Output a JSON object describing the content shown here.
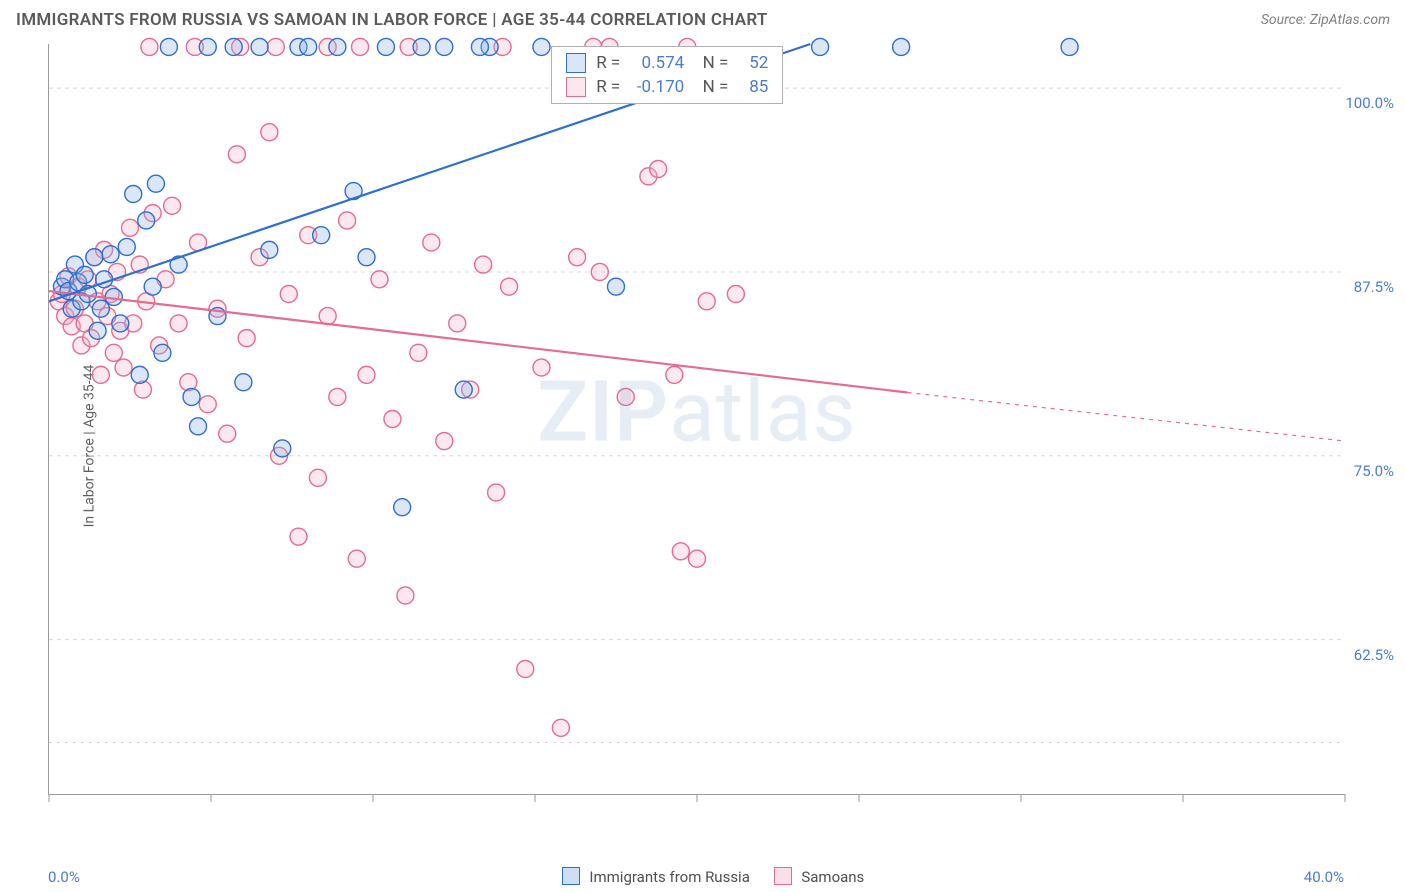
{
  "title": "IMMIGRANTS FROM RUSSIA VS SAMOAN IN LABOR FORCE | AGE 35-44 CORRELATION CHART",
  "source": "Source: ZipAtlas.com",
  "ylabel": "In Labor Force | Age 35-44",
  "watermark_a": "ZIP",
  "watermark_b": "atlas",
  "chart": {
    "type": "scatter",
    "xlim": [
      0,
      40
    ],
    "ylim": [
      52,
      103
    ],
    "x_ticks": [
      0,
      5,
      10,
      15,
      20,
      25,
      30,
      35,
      40
    ],
    "x_tick_labels_shown": {
      "0": "0.0%",
      "40": "40.0%"
    },
    "y_gridlines": [
      62.5,
      75.0,
      87.5,
      100.0
    ],
    "y_tick_labels": [
      "62.5%",
      "75.0%",
      "87.5%",
      "100.0%"
    ],
    "y_secondary_dash": 55.5,
    "background_color": "#ffffff",
    "grid_color": "#d8d8d8",
    "axis_color": "#9a9a9a",
    "tick_length": 8,
    "marker_radius": 8.5,
    "marker_stroke_width": 1.4,
    "marker_fill_opacity": 0.32,
    "line_width": 2.2,
    "series": {
      "russia": {
        "label": "Immigrants from Russia",
        "stroke": "#2f6fd0",
        "fill": "#8fb3e8",
        "corr_R": "0.574",
        "corr_N": "52",
        "trend": {
          "x1": 0,
          "y1": 85.5,
          "x2": 23.5,
          "y2": 103.0,
          "extend_dash_to_x": null
        },
        "points": [
          [
            0.4,
            86.5
          ],
          [
            0.5,
            87.0
          ],
          [
            0.6,
            86.2
          ],
          [
            0.7,
            85.0
          ],
          [
            0.8,
            88.0
          ],
          [
            0.9,
            86.8
          ],
          [
            1.0,
            85.5
          ],
          [
            1.1,
            87.3
          ],
          [
            1.2,
            86.0
          ],
          [
            1.4,
            88.5
          ],
          [
            1.5,
            83.5
          ],
          [
            1.6,
            85.0
          ],
          [
            1.7,
            87.0
          ],
          [
            1.9,
            88.7
          ],
          [
            2.0,
            85.8
          ],
          [
            2.2,
            84.0
          ],
          [
            2.4,
            89.2
          ],
          [
            2.6,
            92.8
          ],
          [
            2.8,
            80.5
          ],
          [
            3.0,
            91.0
          ],
          [
            3.2,
            86.5
          ],
          [
            3.3,
            93.5
          ],
          [
            3.5,
            82.0
          ],
          [
            3.7,
            102.8
          ],
          [
            4.0,
            88.0
          ],
          [
            4.4,
            79.0
          ],
          [
            4.6,
            77.0
          ],
          [
            4.9,
            102.8
          ],
          [
            5.2,
            84.5
          ],
          [
            5.7,
            102.8
          ],
          [
            6.0,
            80.0
          ],
          [
            6.5,
            102.8
          ],
          [
            6.8,
            89.0
          ],
          [
            7.2,
            75.5
          ],
          [
            7.7,
            102.8
          ],
          [
            8.0,
            102.8
          ],
          [
            8.4,
            90.0
          ],
          [
            8.9,
            102.8
          ],
          [
            9.4,
            93.0
          ],
          [
            9.8,
            88.5
          ],
          [
            10.4,
            102.8
          ],
          [
            10.9,
            71.5
          ],
          [
            11.5,
            102.8
          ],
          [
            12.2,
            102.8
          ],
          [
            12.8,
            79.5
          ],
          [
            13.6,
            102.8
          ],
          [
            15.2,
            102.8
          ],
          [
            17.5,
            86.5
          ],
          [
            23.8,
            102.8
          ],
          [
            26.3,
            102.8
          ],
          [
            31.5,
            102.8
          ],
          [
            13.3,
            102.8
          ]
        ]
      },
      "samoan": {
        "label": "Samoans",
        "stroke": "#e56b8f",
        "fill": "#f5b7cb",
        "corr_R": "-0.170",
        "corr_N": "85",
        "trend": {
          "x1": 0,
          "y1": 86.2,
          "x2": 26.5,
          "y2": 79.3,
          "extend_dash_to_x": 40,
          "extend_dash_to_y": 76.0
        },
        "points": [
          [
            0.3,
            85.5
          ],
          [
            0.4,
            86.0
          ],
          [
            0.5,
            84.5
          ],
          [
            0.6,
            87.2
          ],
          [
            0.7,
            83.8
          ],
          [
            0.8,
            85.0
          ],
          [
            0.9,
            86.5
          ],
          [
            1.0,
            82.5
          ],
          [
            1.1,
            84.0
          ],
          [
            1.2,
            87.0
          ],
          [
            1.3,
            83.0
          ],
          [
            1.4,
            88.5
          ],
          [
            1.5,
            85.5
          ],
          [
            1.6,
            80.5
          ],
          [
            1.7,
            89.0
          ],
          [
            1.8,
            84.5
          ],
          [
            1.9,
            86.0
          ],
          [
            2.0,
            82.0
          ],
          [
            2.1,
            87.5
          ],
          [
            2.2,
            83.5
          ],
          [
            2.3,
            81.0
          ],
          [
            2.5,
            90.5
          ],
          [
            2.6,
            84.0
          ],
          [
            2.8,
            88.0
          ],
          [
            2.9,
            79.5
          ],
          [
            3.0,
            85.5
          ],
          [
            3.2,
            91.5
          ],
          [
            3.4,
            82.5
          ],
          [
            3.6,
            87.0
          ],
          [
            3.8,
            92.0
          ],
          [
            4.0,
            84.0
          ],
          [
            4.3,
            80.0
          ],
          [
            4.6,
            89.5
          ],
          [
            4.9,
            78.5
          ],
          [
            5.2,
            85.0
          ],
          [
            5.5,
            76.5
          ],
          [
            5.8,
            95.5
          ],
          [
            6.1,
            83.0
          ],
          [
            6.5,
            88.5
          ],
          [
            6.8,
            97.0
          ],
          [
            7.1,
            75.0
          ],
          [
            7.4,
            86.0
          ],
          [
            7.7,
            69.5
          ],
          [
            8.0,
            90.0
          ],
          [
            8.3,
            73.5
          ],
          [
            8.6,
            84.5
          ],
          [
            8.9,
            79.0
          ],
          [
            9.2,
            91.0
          ],
          [
            9.5,
            68.0
          ],
          [
            9.8,
            80.5
          ],
          [
            10.2,
            87.0
          ],
          [
            10.6,
            77.5
          ],
          [
            11.0,
            65.5
          ],
          [
            11.1,
            102.8
          ],
          [
            11.4,
            82.0
          ],
          [
            11.8,
            89.5
          ],
          [
            12.2,
            76.0
          ],
          [
            12.6,
            84.0
          ],
          [
            13.0,
            79.5
          ],
          [
            13.4,
            88.0
          ],
          [
            13.8,
            72.5
          ],
          [
            14.2,
            86.5
          ],
          [
            14.7,
            60.5
          ],
          [
            15.2,
            81.0
          ],
          [
            15.8,
            56.5
          ],
          [
            16.3,
            88.5
          ],
          [
            17.0,
            87.5
          ],
          [
            17.3,
            102.8
          ],
          [
            17.8,
            79.0
          ],
          [
            18.5,
            94.0
          ],
          [
            18.8,
            94.5
          ],
          [
            19.3,
            80.5
          ],
          [
            19.5,
            68.5
          ],
          [
            20.0,
            68.0
          ],
          [
            20.3,
            85.5
          ],
          [
            21.2,
            86.0
          ],
          [
            19.7,
            102.8
          ],
          [
            16.8,
            102.8
          ],
          [
            3.1,
            102.8
          ],
          [
            4.5,
            102.8
          ],
          [
            8.6,
            102.8
          ],
          [
            9.6,
            102.8
          ],
          [
            14.0,
            102.8
          ],
          [
            5.9,
            102.8
          ],
          [
            7.0,
            102.8
          ]
        ]
      }
    }
  }
}
